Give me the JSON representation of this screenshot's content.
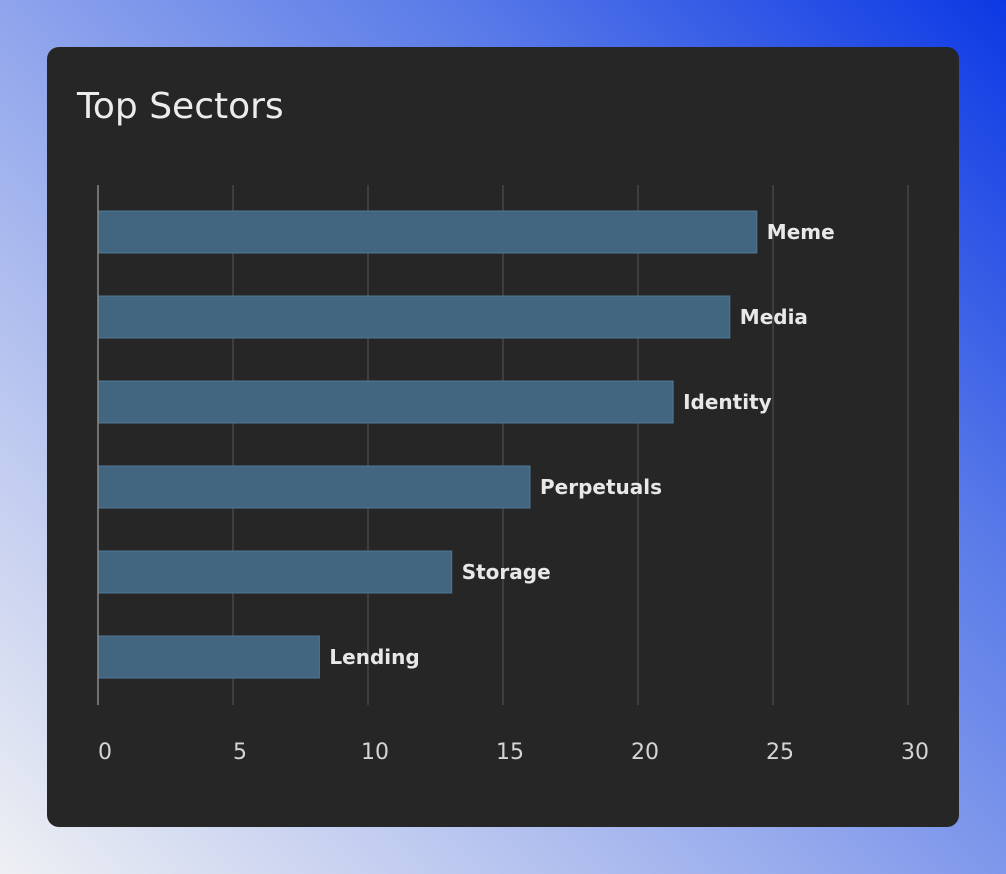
{
  "card": {
    "title": "Top Sectors"
  },
  "colors": {
    "card_background": "#262626",
    "bar_fill": "#426680",
    "bar_stroke": "#4f7896",
    "grid_line": "#555555",
    "axis_line": "#8a8a8a",
    "label_text": "#e8e8e8",
    "tick_text": "#d4d4d4",
    "title_text": "#ececec"
  },
  "chart_data": {
    "type": "bar",
    "orientation": "horizontal",
    "title": "Top Sectors",
    "categories": [
      "Meme",
      "Media",
      "Identity",
      "Perpetuals",
      "Storage",
      "Lending"
    ],
    "values": [
      24.4,
      23.4,
      21.3,
      16.0,
      13.1,
      8.2
    ],
    "xlim": [
      0,
      30
    ],
    "xticks": [
      "0",
      "5",
      "10",
      "15",
      "20",
      "25",
      "30"
    ],
    "xlabel": "",
    "ylabel": "",
    "grid": true,
    "data_labels": "category names at bar ends"
  }
}
